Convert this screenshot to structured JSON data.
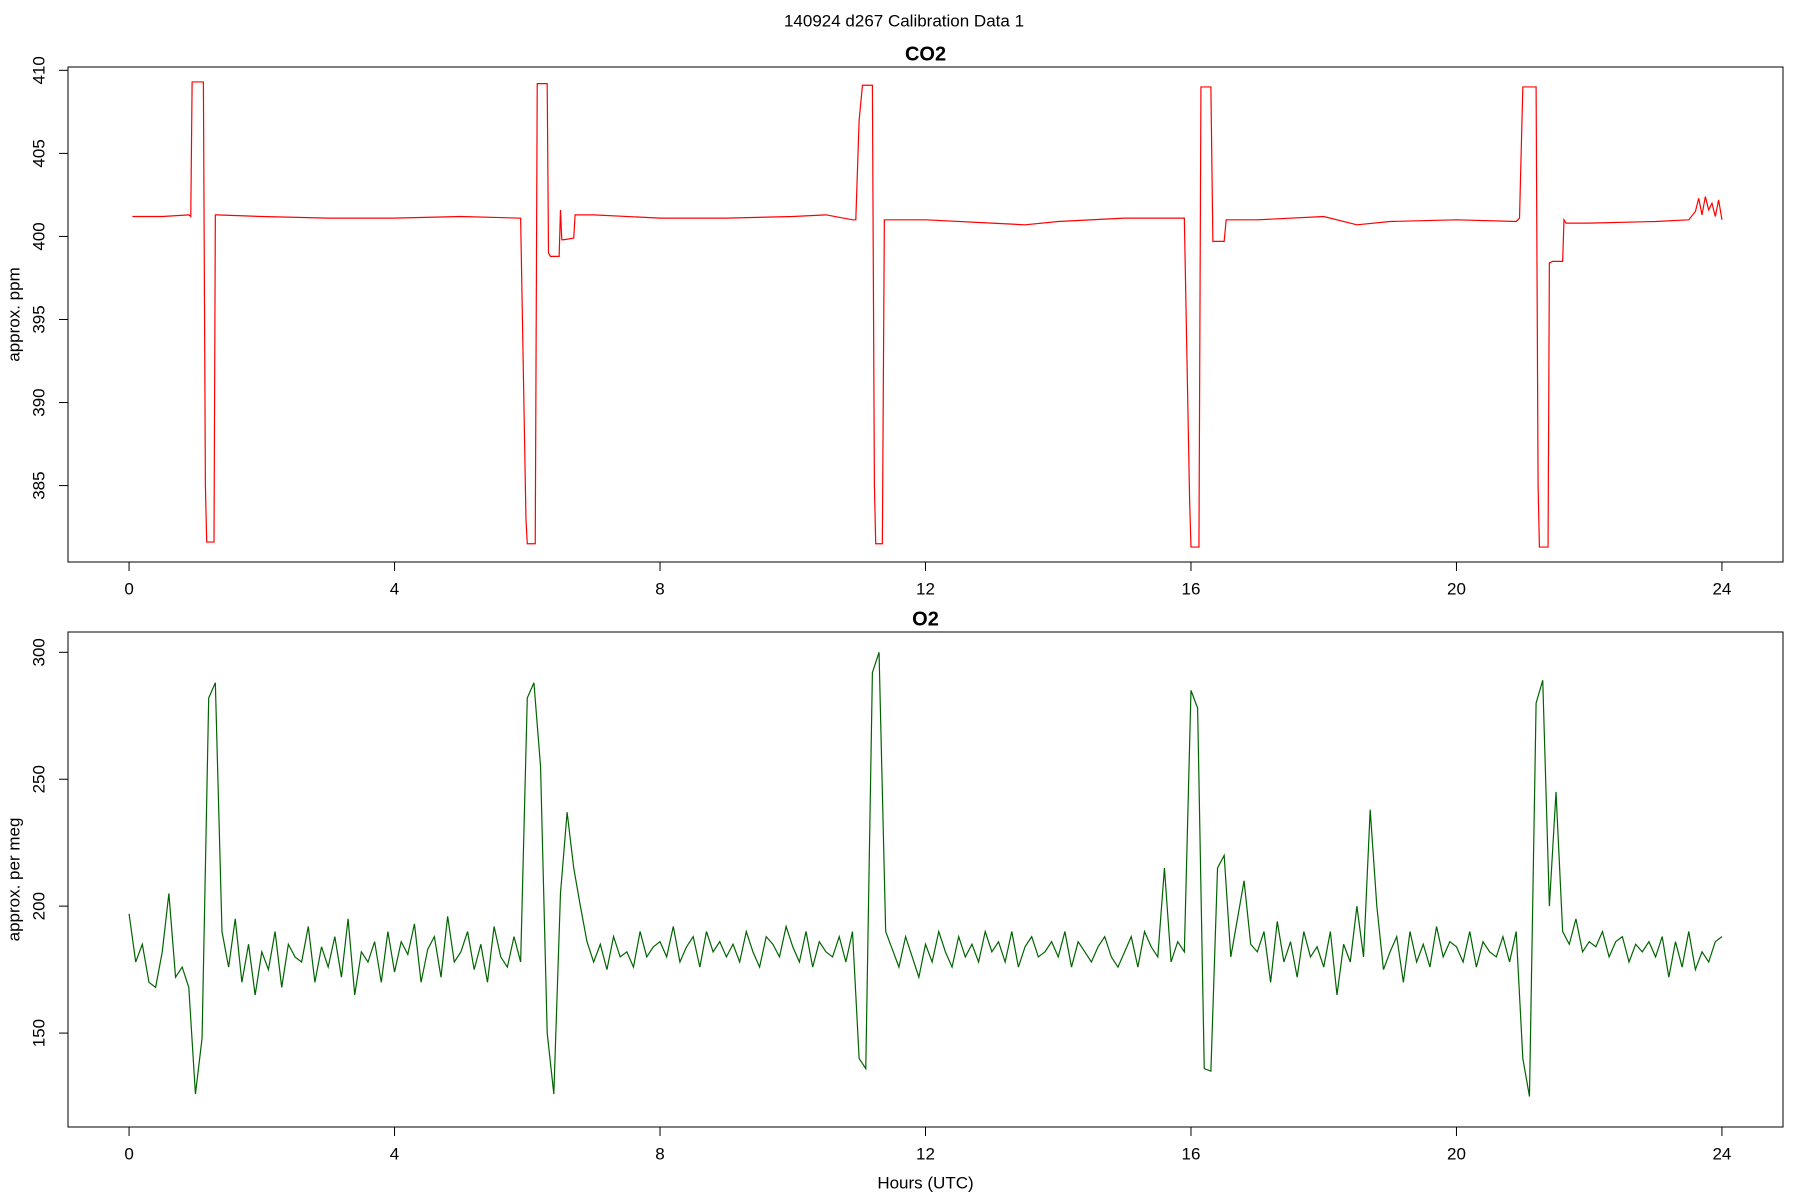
{
  "title": "140924   d267   Calibration Data 1",
  "chart_data": [
    {
      "type": "line",
      "title": "CO2",
      "y_label": "approx. ppm",
      "xlim": [
        -0.92,
        24.92
      ],
      "xticks": [
        0,
        4,
        8,
        12,
        16,
        20,
        24
      ],
      "ylim": [
        380.4,
        410.2
      ],
      "yticks": [
        385,
        390,
        395,
        400,
        405,
        410
      ],
      "x": [
        0.05,
        0.5,
        0.9,
        0.93,
        0.95,
        1.12,
        1.15,
        1.17,
        1.28,
        1.3,
        1.32,
        2,
        3,
        4,
        5,
        5.9,
        5.98,
        6.0,
        6.12,
        6.15,
        6.17,
        6.3,
        6.32,
        6.35,
        6.48,
        6.5,
        6.52,
        6.55,
        6.7,
        6.72,
        7,
        8,
        9,
        10,
        10.5,
        10.9,
        10.95,
        11.0,
        11.05,
        11.2,
        11.23,
        11.25,
        11.35,
        11.38,
        11.4,
        12,
        13,
        13.5,
        14,
        15,
        15.9,
        15.98,
        16.0,
        16.12,
        16.15,
        16.17,
        16.3,
        16.33,
        16.35,
        16.5,
        16.53,
        17,
        18,
        18.5,
        19,
        20,
        20.9,
        20.95,
        21.0,
        21.05,
        21.2,
        21.23,
        21.25,
        21.38,
        21.4,
        21.45,
        21.6,
        21.62,
        21.65,
        22,
        23,
        23.5,
        23.6,
        23.65,
        23.7,
        23.75,
        23.8,
        23.85,
        23.9,
        23.95,
        24.0
      ],
      "series": [
        {
          "color": "#ff0000",
          "values": [
            401.2,
            401.2,
            401.3,
            401.2,
            409.3,
            409.3,
            385,
            381.6,
            381.6,
            401.3,
            401.3,
            401.2,
            401.1,
            401.1,
            401.2,
            401.1,
            383,
            381.5,
            381.5,
            409.2,
            409.2,
            409.2,
            399,
            398.8,
            398.8,
            401.6,
            399.8,
            399.8,
            399.9,
            401.3,
            401.3,
            401.1,
            401.1,
            401.2,
            401.3,
            401.0,
            401.0,
            407,
            409.1,
            409.1,
            385,
            381.5,
            381.5,
            401,
            401,
            401,
            400.8,
            400.7,
            400.9,
            401.1,
            401.1,
            384,
            381.3,
            381.3,
            409,
            409,
            409,
            399.7,
            399.7,
            399.7,
            401,
            401,
            401.2,
            400.7,
            400.9,
            401,
            400.9,
            401.1,
            409,
            409,
            409,
            385,
            381.3,
            381.3,
            398.4,
            398.5,
            398.5,
            401,
            400.8,
            400.8,
            400.9,
            401,
            401.5,
            402.3,
            401.3,
            402.4,
            401.6,
            402.0,
            401.2,
            402.2,
            401.0
          ]
        }
      ]
    },
    {
      "type": "line",
      "title": "O2",
      "y_label": "approx. per meg",
      "x_label": "Hours (UTC)",
      "xlim": [
        -0.92,
        24.92
      ],
      "xticks": [
        0,
        4,
        8,
        12,
        16,
        20,
        24
      ],
      "ylim": [
        113,
        308
      ],
      "yticks": [
        150,
        200,
        250,
        300
      ],
      "x": [
        0,
        0.1,
        0.2,
        0.3,
        0.4,
        0.5,
        0.6,
        0.7,
        0.8,
        0.9,
        1,
        1.1,
        1.2,
        1.3,
        1.4,
        1.5,
        1.6,
        1.7,
        1.8,
        1.9,
        2,
        2.1,
        2.2,
        2.3,
        2.4,
        2.5,
        2.6,
        2.7,
        2.8,
        2.9,
        3,
        3.1,
        3.2,
        3.3,
        3.4,
        3.5,
        3.6,
        3.7,
        3.8,
        3.9,
        4,
        4.1,
        4.2,
        4.3,
        4.4,
        4.5,
        4.6,
        4.7,
        4.8,
        4.9,
        5,
        5.1,
        5.2,
        5.3,
        5.4,
        5.5,
        5.6,
        5.7,
        5.8,
        5.9,
        6,
        6.1,
        6.2,
        6.3,
        6.4,
        6.5,
        6.6,
        6.7,
        6.8,
        6.9,
        7,
        7.1,
        7.2,
        7.3,
        7.4,
        7.5,
        7.6,
        7.7,
        7.8,
        7.9,
        8,
        8.1,
        8.2,
        8.3,
        8.4,
        8.5,
        8.6,
        8.7,
        8.8,
        8.9,
        9,
        9.1,
        9.2,
        9.3,
        9.4,
        9.5,
        9.6,
        9.7,
        9.8,
        9.9,
        10,
        10.1,
        10.2,
        10.3,
        10.4,
        10.5,
        10.6,
        10.7,
        10.8,
        10.9,
        11,
        11.1,
        11.2,
        11.3,
        11.4,
        11.5,
        11.6,
        11.7,
        11.8,
        11.9,
        12,
        12.1,
        12.2,
        12.3,
        12.4,
        12.5,
        12.6,
        12.7,
        12.8,
        12.9,
        13,
        13.1,
        13.2,
        13.3,
        13.4,
        13.5,
        13.6,
        13.7,
        13.8,
        13.9,
        14,
        14.1,
        14.2,
        14.3,
        14.4,
        14.5,
        14.6,
        14.7,
        14.8,
        14.9,
        15,
        15.1,
        15.2,
        15.3,
        15.4,
        15.5,
        15.6,
        15.7,
        15.8,
        15.9,
        16,
        16.1,
        16.2,
        16.3,
        16.4,
        16.5,
        16.6,
        16.7,
        16.8,
        16.9,
        17,
        17.1,
        17.2,
        17.3,
        17.4,
        17.5,
        17.6,
        17.7,
        17.8,
        17.9,
        18,
        18.1,
        18.2,
        18.3,
        18.4,
        18.5,
        18.6,
        18.7,
        18.8,
        18.9,
        19,
        19.1,
        19.2,
        19.3,
        19.4,
        19.5,
        19.6,
        19.7,
        19.8,
        19.9,
        20,
        20.1,
        20.2,
        20.3,
        20.4,
        20.5,
        20.6,
        20.7,
        20.8,
        20.9,
        21,
        21.1,
        21.2,
        21.3,
        21.4,
        21.5,
        21.6,
        21.7,
        21.8,
        21.9,
        22,
        22.1,
        22.2,
        22.3,
        22.4,
        22.5,
        22.6,
        22.7,
        22.8,
        22.9,
        23,
        23.1,
        23.2,
        23.3,
        23.4,
        23.5,
        23.6,
        23.7,
        23.8,
        23.9,
        24
      ],
      "series": [
        {
          "color": "#006400",
          "values": [
            197,
            178,
            185,
            170,
            168,
            182,
            205,
            172,
            176,
            168,
            126,
            148,
            282,
            288,
            190,
            176,
            195,
            170,
            185,
            165,
            182,
            175,
            190,
            168,
            185,
            180,
            178,
            192,
            170,
            184,
            176,
            188,
            172,
            195,
            165,
            182,
            178,
            186,
            170,
            190,
            174,
            186,
            181,
            193,
            170,
            183,
            188,
            172,
            196,
            178,
            182,
            190,
            175,
            185,
            170,
            192,
            180,
            176,
            188,
            178,
            282,
            288,
            255,
            150,
            126,
            205,
            237,
            215,
            200,
            186,
            178,
            185,
            175,
            188,
            180,
            182,
            176,
            190,
            180,
            184,
            186,
            180,
            192,
            178,
            184,
            188,
            176,
            190,
            182,
            186,
            180,
            185,
            178,
            190,
            182,
            176,
            188,
            185,
            180,
            192,
            184,
            178,
            190,
            176,
            186,
            182,
            180,
            188,
            178,
            190,
            140,
            136,
            292,
            300,
            190,
            183,
            176,
            188,
            180,
            172,
            185,
            178,
            190,
            182,
            176,
            188,
            180,
            185,
            178,
            190,
            182,
            186,
            178,
            190,
            176,
            184,
            188,
            180,
            182,
            186,
            180,
            190,
            176,
            186,
            182,
            178,
            184,
            188,
            180,
            176,
            182,
            188,
            176,
            190,
            184,
            180,
            215,
            178,
            186,
            182,
            285,
            278,
            136,
            135,
            215,
            220,
            180,
            195,
            210,
            185,
            182,
            190,
            170,
            194,
            178,
            186,
            172,
            190,
            180,
            184,
            176,
            190,
            165,
            185,
            178,
            200,
            180,
            238,
            200,
            175,
            182,
            188,
            170,
            190,
            178,
            185,
            176,
            192,
            180,
            186,
            184,
            178,
            190,
            176,
            186,
            182,
            180,
            188,
            178,
            190,
            140,
            125,
            280,
            289,
            200,
            245,
            190,
            185,
            195,
            182,
            186,
            184,
            190,
            180,
            186,
            188,
            178,
            185,
            182,
            186,
            180,
            188,
            172,
            186,
            176,
            190,
            175,
            182,
            178,
            186,
            188
          ]
        }
      ]
    }
  ]
}
